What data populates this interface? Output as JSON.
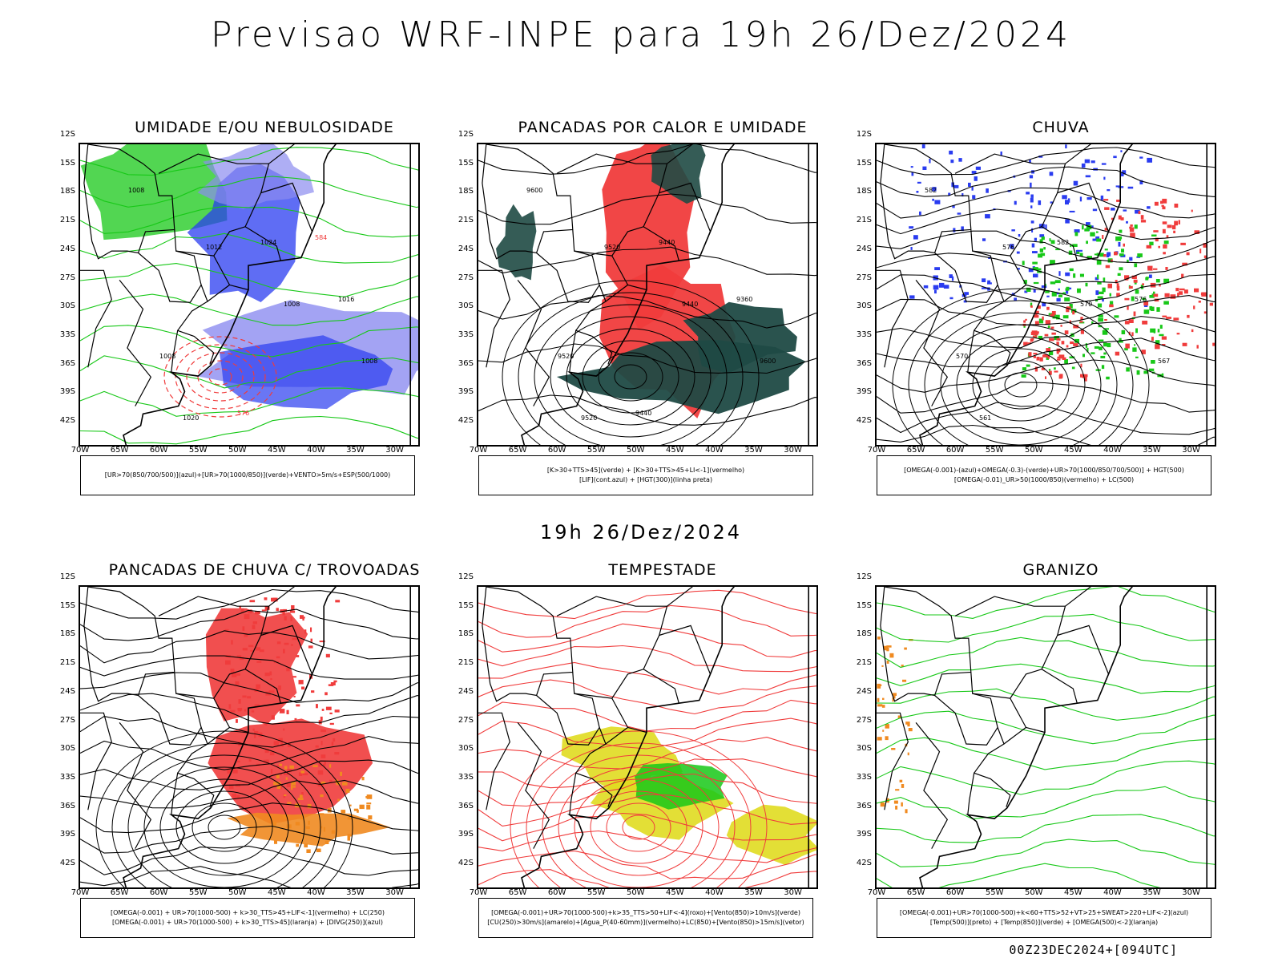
{
  "title": "Previsao WRF-INPE  para 19h 26/Dez/2024",
  "mid_title": "19h 26/Dez/2024",
  "footer": "00Z23DEC2024+[094UTC]",
  "lat_labels": [
    "12S",
    "15S",
    "18S",
    "21S",
    "24S",
    "27S",
    "30S",
    "33S",
    "36S",
    "39S",
    "42S"
  ],
  "lon_labels": [
    "70W",
    "65W",
    "60W",
    "55W",
    "50W",
    "45W",
    "40W",
    "35W",
    "30W"
  ],
  "colors": {
    "red": "#f03c3c",
    "green": "#18c818",
    "blue": "#2a3cf0",
    "lightblue": "#8c8cf0",
    "darkgreen": "#1f4a44",
    "yellow": "#e0dc20",
    "orange": "#f08a20"
  },
  "panels": [
    {
      "id": "umidade",
      "title": "UMIDADE E/OU NEBULOSIDADE",
      "legend": [
        "[UR>70(850/700/500)](azul)+[UR>70(1000/850)](verde)+VENTO>5m/s+ESP(500/1000)"
      ],
      "contour_labels": [
        "1008",
        "1012",
        "1008",
        "1008",
        "1020",
        "1024",
        "1016",
        "1008",
        "576",
        "584"
      ]
    },
    {
      "id": "pancadas",
      "title": "PANCADAS POR CALOR E UMIDADE",
      "legend": [
        "[K>30+TTS>45](verde) + [K>30+TTS>45+LI<-1](vermelho)",
        "[LIF](cont.azul) + [HGT(300)](linha preta)"
      ],
      "contour_labels": [
        "9600",
        "9520",
        "9440",
        "9600",
        "9520",
        "9440",
        "9360",
        "9520",
        "9440"
      ]
    },
    {
      "id": "chuva",
      "title": "CHUVA",
      "legend": [
        "[OMEGA(-0.001)-(azul)+OMEGA(-0.3)-(verde)+UR>70(1000/850/700/500)] + HGT(500)",
        "[OMEGA(-0.01)_UR>50(1000/850)(vermelho) + LC(500)"
      ],
      "contour_labels": [
        "582",
        "576",
        "570",
        "567",
        "561",
        "582",
        "576",
        "570"
      ]
    },
    {
      "id": "trovoadas",
      "title": "PANCADAS DE CHUVA C/ TROVOADAS",
      "legend": [
        "[OMEGA(-0.001) + UR>70(1000-500) + k>30_TTS>45+LIF<-1](vermelho) + LC(250)",
        "[OMEGA(-0.001) + UR>70(1000-500) + k>30_TTS>45](laranja) + [DIVG(250)](azul)"
      ],
      "contour_labels": []
    },
    {
      "id": "tempestade",
      "title": "TEMPESTADE",
      "legend": [
        "[OMEGA(-0.001)+UR>70(1000-500)+k>35_TTS>50+LIF<-4](roxo)+[Vento(850)>10m/s](verde)",
        "[CU(250)>30m/s](amarelo)+[Agua_P(40-60mm)](vermelho)+LC(850)+[Vento(850)>15m/s](vetor)"
      ],
      "contour_labels": []
    },
    {
      "id": "granizo",
      "title": "GRANIZO",
      "legend": [
        "[OMEGA(-0.001)+UR>70(1000-500)+k<60+TTS>52+VT>25+SWEAT>220+LIF<-2](azul)",
        "[Temp(500)](preto) + [Temp(850)](verde) + [OMEGA(500)<-2](laranja)"
      ],
      "contour_labels": []
    }
  ]
}
